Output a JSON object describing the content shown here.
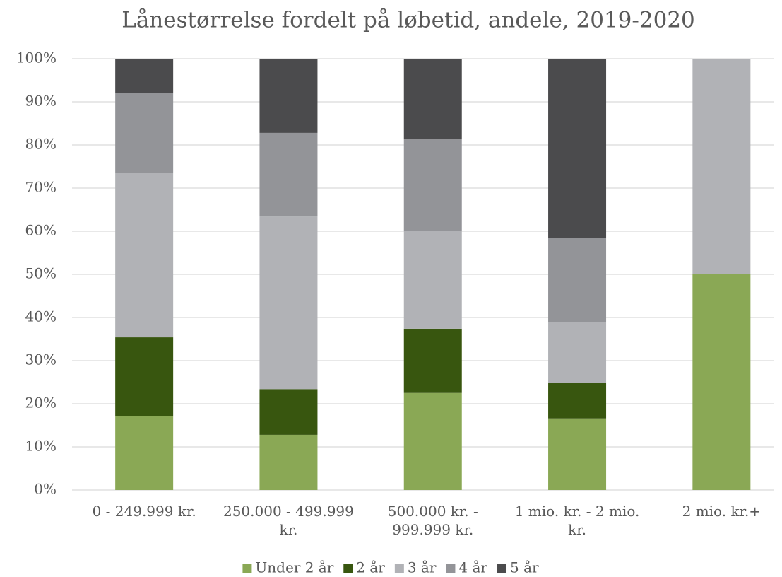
{
  "chart_data": {
    "type": "stacked_bar",
    "title": "Lånestørrelse fordelt på løbetid, andele, 2019-2020",
    "categories": [
      "0 - 249.999 kr.",
      "250.000 - 499.999 kr.",
      "500.000 kr. - 999.999 kr.",
      "1 mio. kr. - 2 mio. kr.",
      "2 mio. kr.+"
    ],
    "series": [
      {
        "name": "Under 2 år",
        "color": "#8aa855",
        "values": [
          17.2,
          12.8,
          22.5,
          16.6,
          50
        ]
      },
      {
        "name": "2 år",
        "color": "#38560f",
        "values": [
          18.2,
          10.6,
          14.9,
          8.2,
          0
        ]
      },
      {
        "name": "3 år",
        "color": "#b1b2b6",
        "values": [
          38.2,
          40.0,
          22.6,
          14.1,
          50
        ]
      },
      {
        "name": "4 år",
        "color": "#939498",
        "values": [
          18.4,
          19.4,
          21.3,
          19.5,
          0
        ]
      },
      {
        "name": "5 år",
        "color": "#4b4b4d",
        "values": [
          8.0,
          17.2,
          18.7,
          41.6,
          0
        ]
      }
    ],
    "ylim": [
      0,
      100
    ],
    "yticks": [
      {
        "value": 0,
        "label": "0%"
      },
      {
        "value": 10,
        "label": "10%"
      },
      {
        "value": 20,
        "label": "20%"
      },
      {
        "value": 30,
        "label": "30%"
      },
      {
        "value": 40,
        "label": "40%"
      },
      {
        "value": 50,
        "label": "50%"
      },
      {
        "value": 60,
        "label": "60%"
      },
      {
        "value": 70,
        "label": "70%"
      },
      {
        "value": 80,
        "label": "80%"
      },
      {
        "value": 90,
        "label": "90%"
      },
      {
        "value": 100,
        "label": "100%"
      }
    ],
    "grid": true,
    "legend": "bottom"
  }
}
